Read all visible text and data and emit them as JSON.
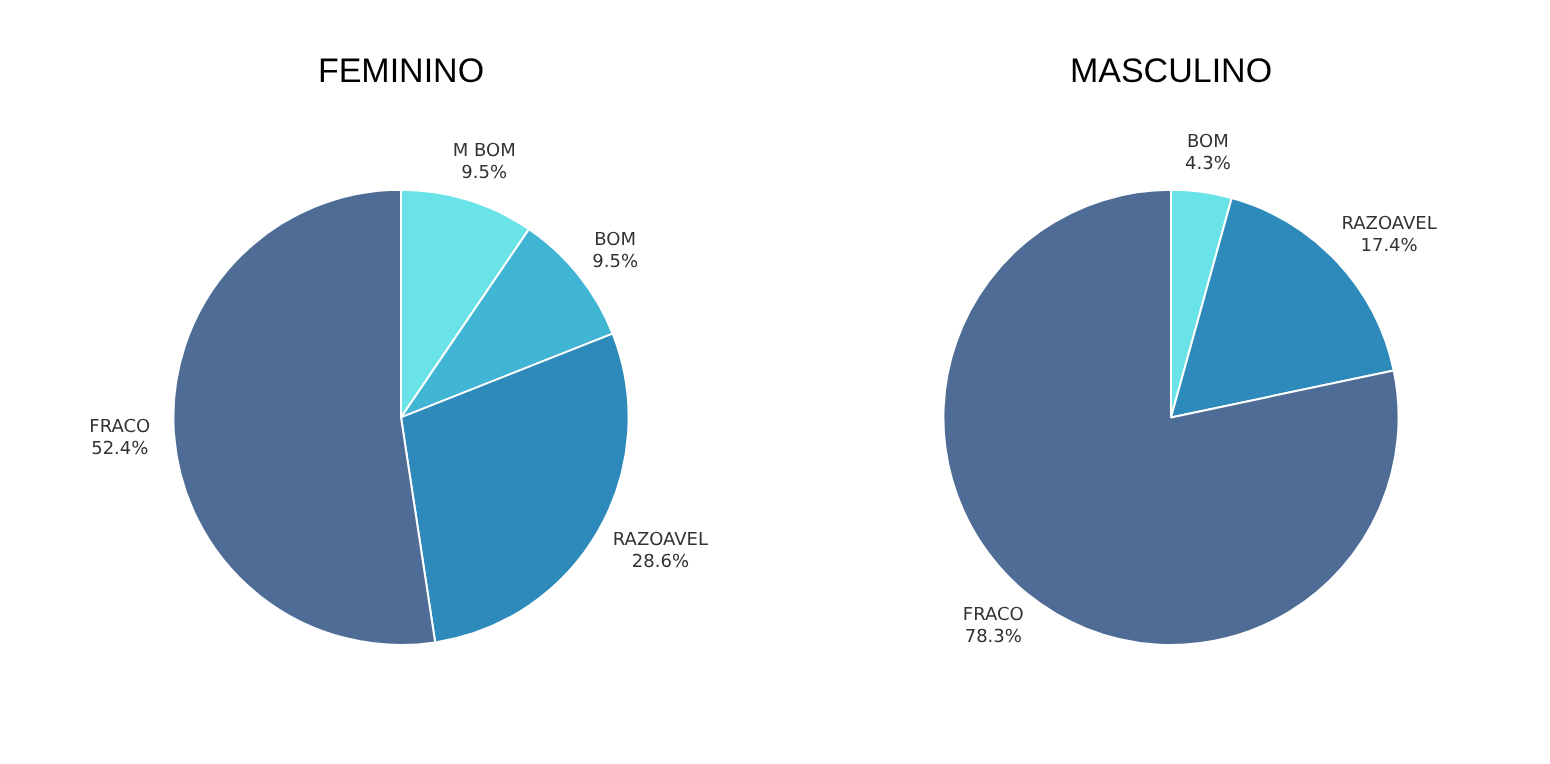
{
  "chart_data": [
    {
      "type": "pie",
      "title": "FEMININO",
      "categories": [
        "M BOM",
        "BOM",
        "RAZOAVEL",
        "FRACO"
      ],
      "values": [
        9.5,
        9.5,
        28.6,
        52.4
      ],
      "colors": [
        "#6ae3e8",
        "#41b5d4",
        "#2d8aba",
        "#4e6c96"
      ],
      "value_labels": [
        "9.5%",
        "9.5%",
        "28.6%",
        "52.4%"
      ]
    },
    {
      "type": "pie",
      "title": "MASCULINO",
      "categories": [
        "BOM",
        "RAZOAVEL",
        "FRACO"
      ],
      "values": [
        4.3,
        17.4,
        78.3
      ],
      "colors": [
        "#6ae3e8",
        "#2d8aba",
        "#4e6c96"
      ],
      "value_labels": [
        "4.3%",
        "17.4%",
        "78.3%"
      ]
    }
  ]
}
